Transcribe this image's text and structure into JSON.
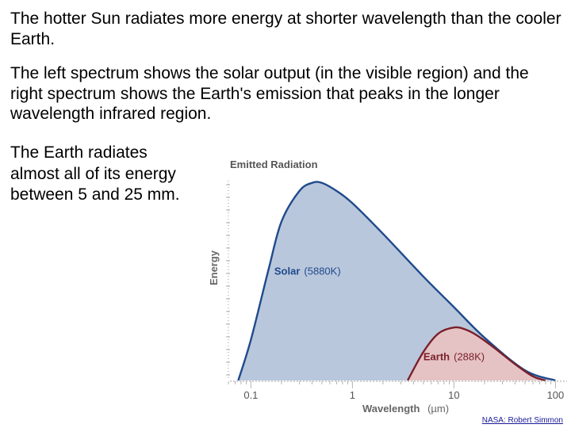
{
  "text": {
    "p1": "The hotter Sun radiates more energy at shorter wavelength than the cooler Earth.",
    "p2": "The left spectrum shows the solar output (in the visible region) and the right spectrum shows the Earth's emission that peaks in the longer wavelength infrared region.",
    "p3": "The Earth radiates almost all of its energy between 5 and 25 mm."
  },
  "credit": "NASA: Robert Simmon",
  "colors": {
    "solar_fill": "#b9c7dc",
    "solar_line": "#1f4a8c",
    "earth_fill": "#e5c3c4",
    "earth_line": "#7a1f2a",
    "axis_text": "#555555"
  },
  "chart_data": {
    "type": "area",
    "title": "Emitted Radiation",
    "xlabel": "Wavelength",
    "xlabel_unit": "(µm)",
    "ylabel": "Energy",
    "x_scale": "log",
    "xlim": [
      0.06,
      130
    ],
    "ylim": [
      0,
      1
    ],
    "x_ticks": [
      0.1,
      1,
      10,
      100
    ],
    "x_tick_labels": [
      "0.1",
      "1",
      "10",
      "100"
    ],
    "series": [
      {
        "name": "Solar",
        "label_suffix": "(5880K)",
        "x": [
          0.075,
          0.1,
          0.15,
          0.2,
          0.3,
          0.4,
          0.5,
          0.7,
          1,
          2,
          5,
          10,
          20,
          50,
          100
        ],
        "y": [
          0.0,
          0.2,
          0.55,
          0.78,
          0.93,
          0.97,
          0.97,
          0.93,
          0.87,
          0.72,
          0.51,
          0.36,
          0.21,
          0.05,
          0.0
        ]
      },
      {
        "name": "Earth",
        "label_suffix": "(288K)",
        "x": [
          3.5,
          5,
          7,
          10,
          13,
          17,
          25,
          40,
          60,
          80
        ],
        "y": [
          0.0,
          0.14,
          0.23,
          0.26,
          0.25,
          0.22,
          0.16,
          0.08,
          0.02,
          0.0
        ]
      }
    ]
  }
}
